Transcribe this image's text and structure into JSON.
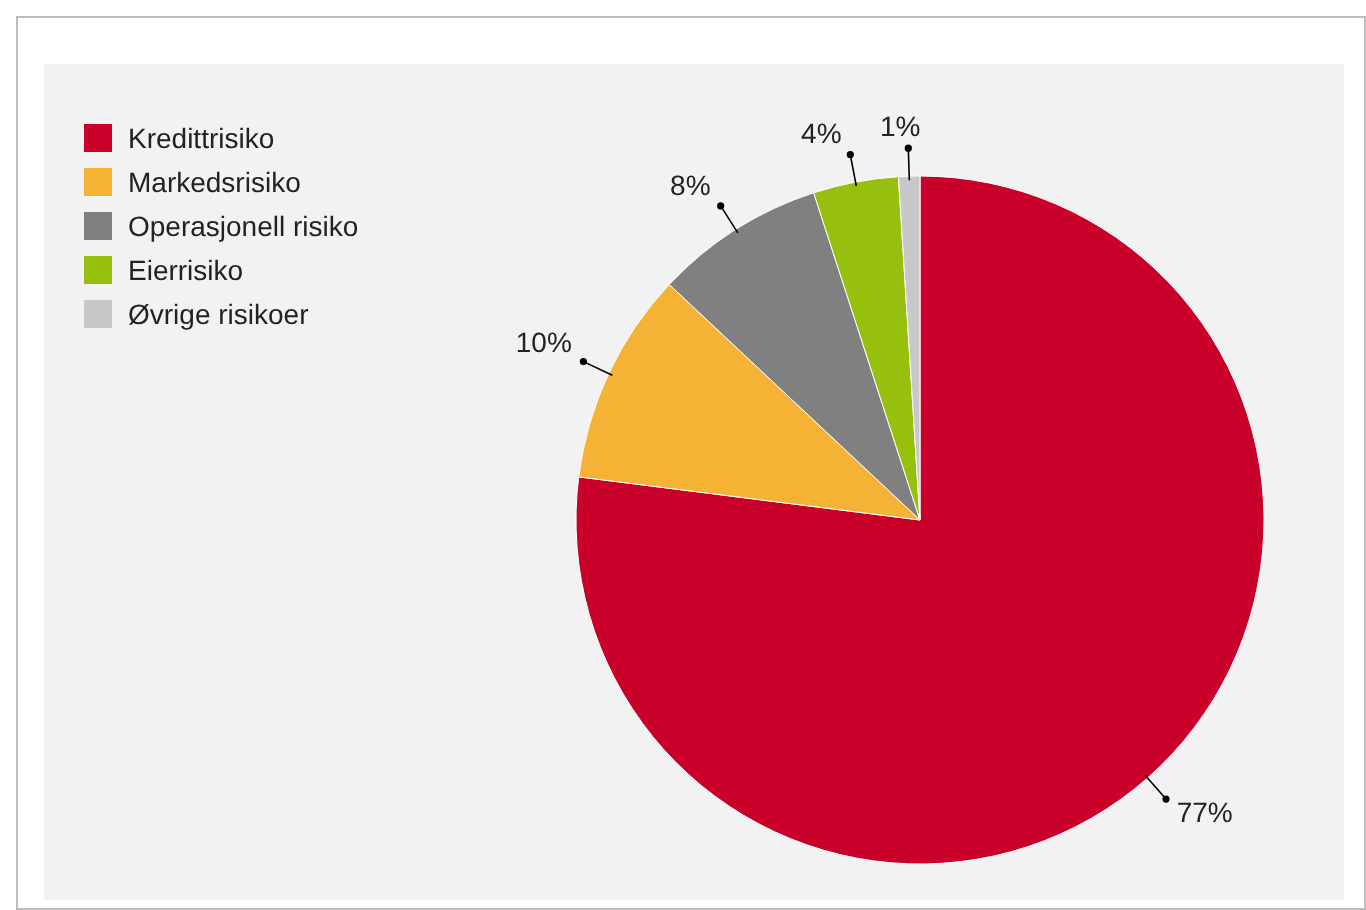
{
  "chart_data": {
    "type": "pie",
    "categories": [
      "Kredittrisiko",
      "Markedsrisiko",
      "Operasjonell risiko",
      "Eierrisiko",
      "Øvrige risikoer"
    ],
    "values": [
      77,
      10,
      8,
      4,
      1
    ],
    "colors": [
      "#c8002a",
      "#f5b335",
      "#808080",
      "#97bf0d",
      "#c8c8c8"
    ],
    "value_labels": [
      "77%",
      "10%",
      "8%",
      "4%",
      "1%"
    ],
    "legend": "top left"
  }
}
